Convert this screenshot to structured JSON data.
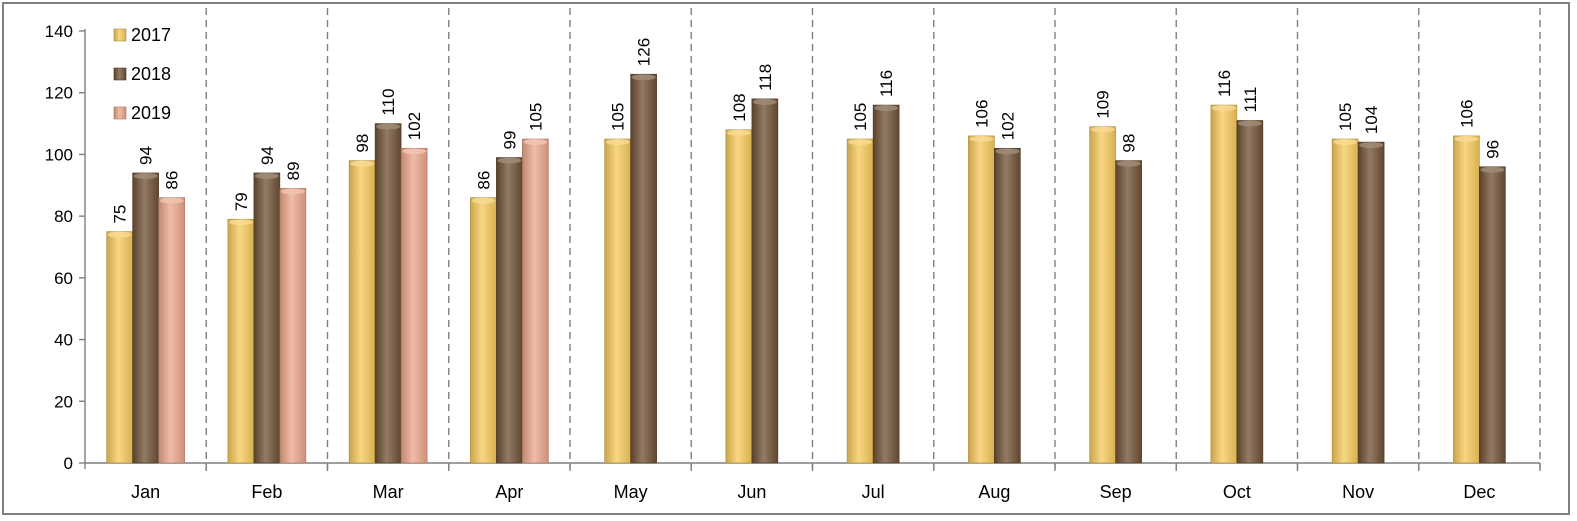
{
  "chart_data": {
    "type": "bar",
    "categories": [
      "Jan",
      "Feb",
      "Mar",
      "Apr",
      "May",
      "Jun",
      "Jul",
      "Aug",
      "Sep",
      "Oct",
      "Nov",
      "Dec"
    ],
    "series": [
      {
        "name": "2017",
        "values": [
          75,
          79,
          98,
          86,
          105,
          108,
          105,
          106,
          109,
          116,
          105,
          106
        ],
        "color": "#f5c85a"
      },
      {
        "name": "2018",
        "values": [
          94,
          94,
          110,
          99,
          126,
          118,
          116,
          102,
          98,
          111,
          104,
          96
        ],
        "color": "#6e4f33"
      },
      {
        "name": "2019",
        "values": [
          86,
          89,
          102,
          105,
          null,
          null,
          null,
          null,
          null,
          null,
          null,
          null
        ],
        "color": "#eaa58a"
      }
    ],
    "data_labels": [
      [
        "75",
        "79",
        "98",
        "86",
        "105",
        "108",
        "105",
        "106",
        "109",
        "116",
        "105",
        "106"
      ],
      [
        "94",
        "94",
        "110",
        "99",
        "126",
        "118",
        "116",
        "102",
        "98",
        "111",
        "104",
        "96"
      ],
      [
        "86",
        "89",
        "102",
        "105",
        "",
        "",
        "",
        "",
        "",
        "",
        "",
        ""
      ]
    ],
    "yticks": [
      "0",
      "20",
      "40",
      "60",
      "80",
      "100",
      "120",
      "140"
    ],
    "ylim": [
      0,
      140
    ],
    "grid": "vertical dashed separators between categories",
    "legend": "top-left",
    "title": "",
    "xlabel": "",
    "ylabel": ""
  }
}
